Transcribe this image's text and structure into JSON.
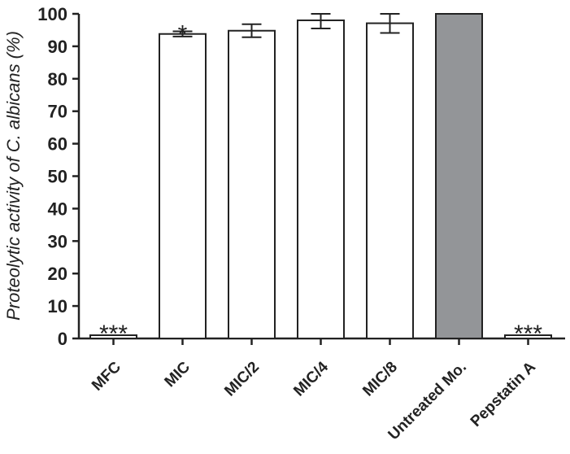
{
  "chart_data": {
    "type": "bar",
    "ylabel": "Proteolytic activity of C. albicans (%)",
    "ylim": [
      0,
      100
    ],
    "yticks": [
      0,
      10,
      20,
      30,
      40,
      50,
      60,
      70,
      80,
      90,
      100
    ],
    "categories": [
      "MFC",
      "MIC",
      "MIC/2",
      "MIC/4",
      "MIC/8",
      "Untreated Mo.",
      "Pepstatin A"
    ],
    "values": [
      1,
      93.8,
      94.8,
      98,
      97.1,
      100,
      1
    ],
    "error": [
      0,
      0.8,
      2,
      2.5,
      3,
      0,
      0
    ],
    "significance": [
      "***",
      "*",
      "",
      "",
      "",
      "",
      "***"
    ],
    "bar_colors": [
      "#ffffff",
      "#ffffff",
      "#ffffff",
      "#ffffff",
      "#ffffff",
      "#939598",
      "#ffffff"
    ],
    "bar_stroke": "#222222",
    "grid": false
  }
}
